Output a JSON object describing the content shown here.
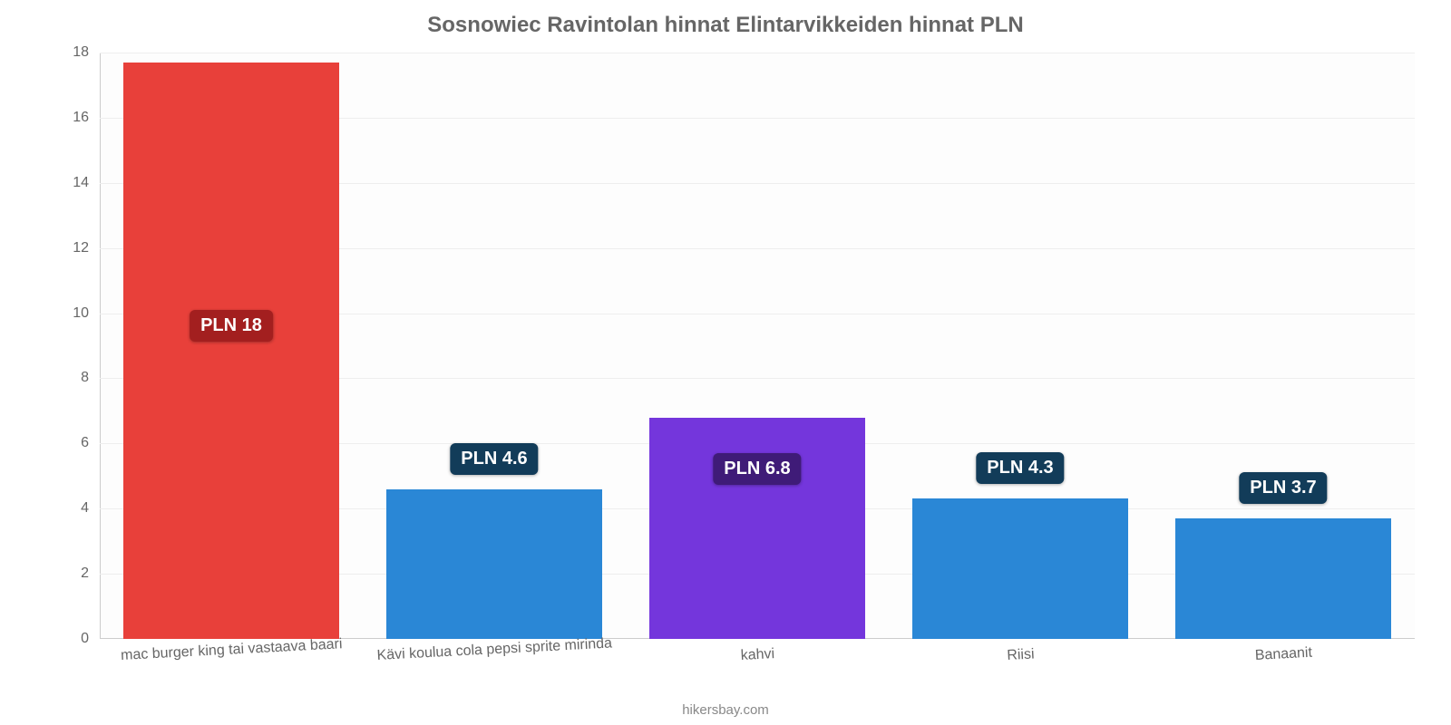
{
  "chart": {
    "type": "bar",
    "title": "Sosnowiec Ravintolan hinnat Elintarvikkeiden hinnat PLN",
    "title_color": "#666666",
    "title_fontsize": 24,
    "background_color": "#fdfdfd",
    "grid_color": "#eeeeee",
    "axis_color": "#cccccc",
    "tick_color": "#666666",
    "tick_fontsize": 16,
    "label_fontsize": 20,
    "ylim": [
      0,
      18
    ],
    "yticks": [
      0,
      2,
      4,
      6,
      8,
      10,
      12,
      14,
      16,
      18
    ],
    "bar_width_pct": 82,
    "x_label_rotate_deg": -3,
    "categories": [
      "mac burger king tai vastaava baari",
      "Kävi koulua cola pepsi sprite mirinda",
      "kahvi",
      "Riisi",
      "Banaanit"
    ],
    "values": [
      17.7,
      4.6,
      6.8,
      4.3,
      3.7
    ],
    "bar_colors": [
      "#e8403a",
      "#2a87d6",
      "#7436dc",
      "#2a87d6",
      "#2a87d6"
    ],
    "data_labels": [
      "PLN 18",
      "PLN 4.6",
      "PLN 6.8",
      "PLN 4.3",
      "PLN 3.7"
    ],
    "data_label_bg": [
      "#a31f1f",
      "#123c59",
      "#3f1b78",
      "#123c59",
      "#123c59"
    ],
    "data_label_color": "#ffffff",
    "data_label_offsets_pct": [
      43,
      -16,
      16,
      -16,
      -16
    ],
    "source": "hikersbay.com",
    "source_color": "#888888"
  }
}
